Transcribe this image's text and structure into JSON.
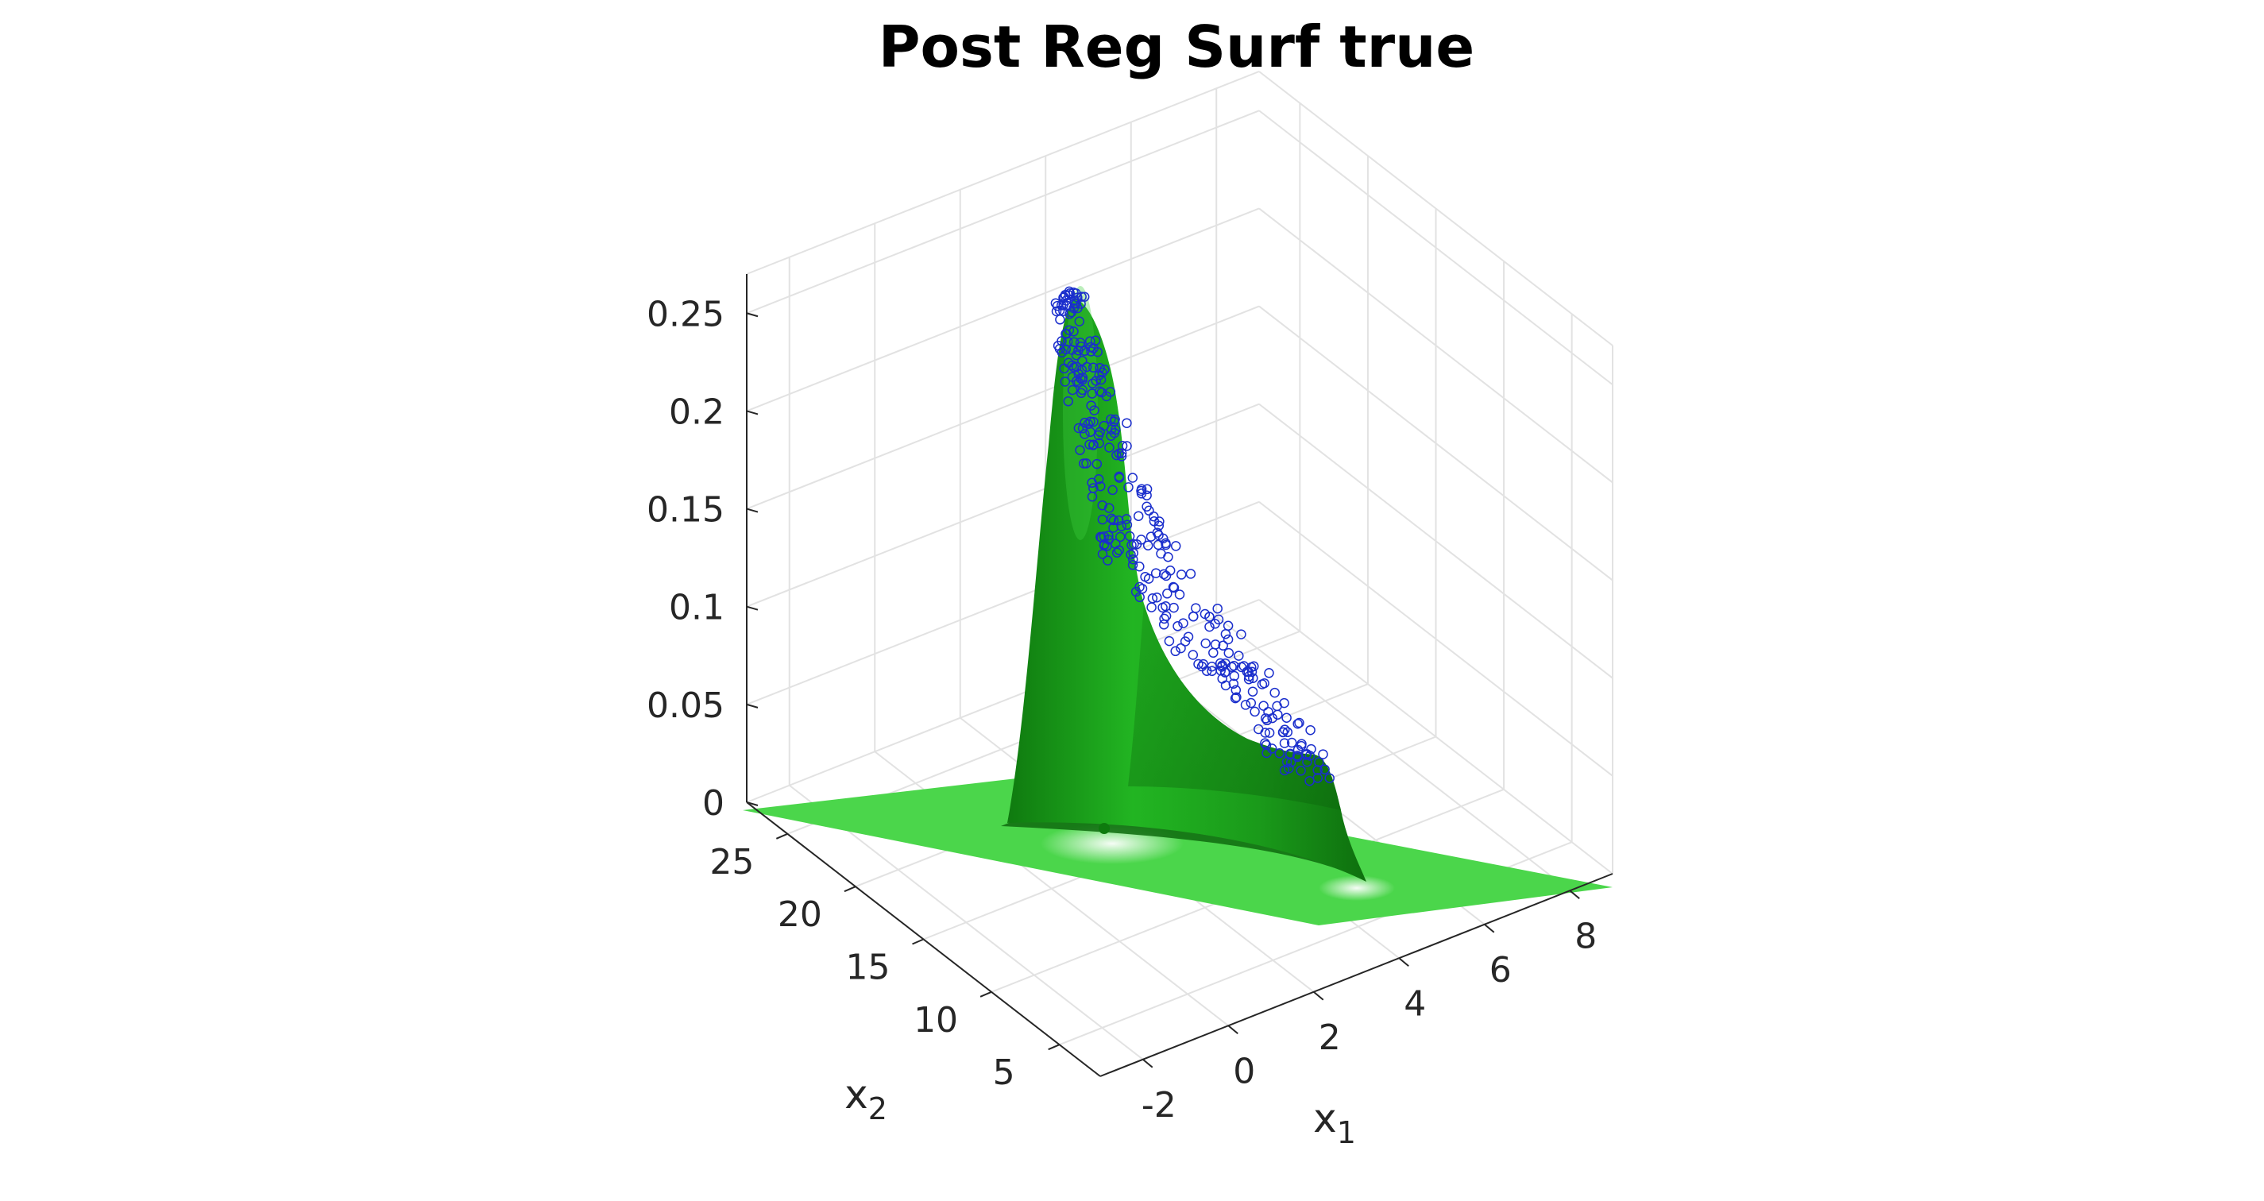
{
  "chart_data": {
    "type": "surface3d",
    "title": "Post Reg Surf true",
    "xlabel": "x",
    "xlabel_sub": "1",
    "ylabel": "x",
    "ylabel_sub": "2",
    "zlabel": "",
    "x_ticks": [
      "-2",
      "0",
      "2",
      "4",
      "6",
      "8"
    ],
    "y_ticks": [
      "5",
      "10",
      "15",
      "20",
      "25"
    ],
    "z_ticks": [
      "0",
      "0.05",
      "0.1",
      "0.15",
      "0.2",
      "0.25"
    ],
    "xlim": [
      -3,
      9
    ],
    "ylim": [
      2,
      28
    ],
    "zlim": [
      0,
      0.27
    ],
    "grid": true,
    "surface_color": "#22b522",
    "plane_color": "#4bd64b",
    "marker_color": "#1a2ecc",
    "peak": {
      "x1": 1.5,
      "x2": 22,
      "z": 0.26
    },
    "shoulder": {
      "x1": 5,
      "x2": 12,
      "z": 0.03
    }
  }
}
